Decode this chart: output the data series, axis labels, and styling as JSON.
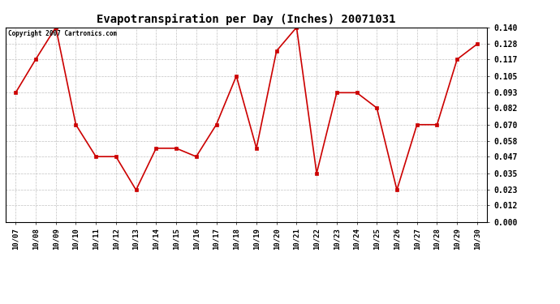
{
  "title": "Evapotranspiration per Day (Inches) 20071031",
  "copyright_text": "Copyright 2007 Cartronics.com",
  "x_labels": [
    "10/07",
    "10/08",
    "10/09",
    "10/10",
    "10/11",
    "10/12",
    "10/13",
    "10/14",
    "10/15",
    "10/16",
    "10/17",
    "10/18",
    "10/19",
    "10/20",
    "10/21",
    "10/22",
    "10/23",
    "10/24",
    "10/25",
    "10/26",
    "10/27",
    "10/28",
    "10/29",
    "10/30"
  ],
  "y_values": [
    0.093,
    0.117,
    0.14,
    0.07,
    0.047,
    0.047,
    0.023,
    0.053,
    0.053,
    0.047,
    0.07,
    0.105,
    0.053,
    0.123,
    0.14,
    0.035,
    0.093,
    0.093,
    0.082,
    0.023,
    0.07,
    0.07,
    0.117,
    0.128
  ],
  "line_color": "#cc0000",
  "marker_color": "#cc0000",
  "bg_color": "#ffffff",
  "grid_color": "#bbbbbb",
  "y_min": 0.0,
  "y_max": 0.14,
  "y_ticks": [
    0.0,
    0.012,
    0.023,
    0.035,
    0.047,
    0.058,
    0.07,
    0.082,
    0.093,
    0.105,
    0.117,
    0.128,
    0.14
  ]
}
